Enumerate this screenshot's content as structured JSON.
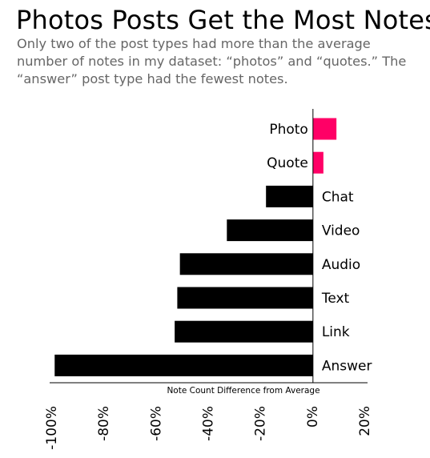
{
  "title": "Photos Posts Get the Most Notes",
  "subtitle": "Only two of the post types had more than the average number of notes in my dataset: “photos” and “quotes.” The “answer” post type had the fewest notes.",
  "colors": {
    "positive": "#ff0066",
    "negative": "#000000",
    "axis": "#000000"
  },
  "chart_data": {
    "type": "bar",
    "orientation": "horizontal",
    "categories": [
      "Photo",
      "Quote",
      "Chat",
      "Video",
      "Audio",
      "Text",
      "Link",
      "Answer"
    ],
    "values": [
      9,
      4,
      -18,
      -33,
      -51,
      -52,
      -53,
      -99
    ],
    "unit": "%",
    "xlabel": "Note Count Difference from Average",
    "ylabel": "",
    "xlim": [
      -100,
      20
    ],
    "xticks": [
      -100,
      -80,
      -60,
      -40,
      -20,
      0,
      20
    ],
    "xtick_labels": [
      "-100%",
      "-80%",
      "-60%",
      "-40%",
      "-20%",
      "0%",
      "20%"
    ],
    "grid": false,
    "legend": "none"
  }
}
